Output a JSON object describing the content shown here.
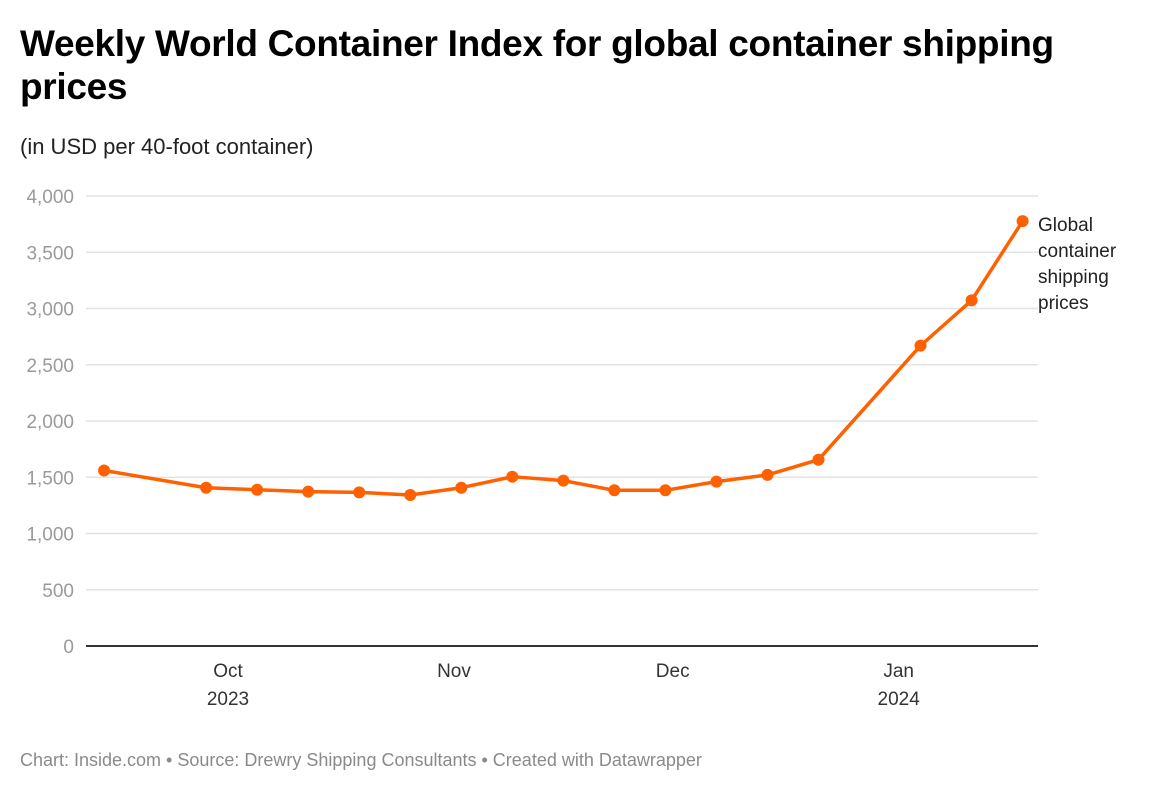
{
  "title": "Weekly World Container Index for global container shipping prices",
  "subtitle": "(in USD per 40-foot container)",
  "footer": "Chart: Inside.com • Source: Drewry Shipping Consultants • Created with Datawrapper",
  "colors": {
    "line": "#ff6000",
    "grid": "#e3e3e3",
    "axis": "#333333"
  },
  "chart_data": {
    "type": "line",
    "title": "Weekly World Container Index for global container shipping prices",
    "subtitle": "(in USD per 40-foot container)",
    "xlabel": "",
    "ylabel": "",
    "ylim": [
      0,
      4000
    ],
    "yticks": [
      0,
      500,
      1000,
      1500,
      2000,
      2500,
      3000,
      3500,
      4000
    ],
    "ytick_labels": [
      "0",
      "500",
      "1,000",
      "1,500",
      "2,000",
      "2,500",
      "3,000",
      "3,500",
      "4,000"
    ],
    "xticks": [
      {
        "date": "2023-10-01",
        "label": "Oct",
        "sublabel": "2023"
      },
      {
        "date": "2023-11-01",
        "label": "Nov",
        "sublabel": ""
      },
      {
        "date": "2023-12-01",
        "label": "Dec",
        "sublabel": ""
      },
      {
        "date": "2024-01-01",
        "label": "Jan",
        "sublabel": "2024"
      }
    ],
    "grid": true,
    "series": [
      {
        "name": "Global container shipping prices",
        "x": [
          "2023-09-14",
          "2023-09-28",
          "2023-10-05",
          "2023-10-12",
          "2023-10-19",
          "2023-10-26",
          "2023-11-02",
          "2023-11-09",
          "2023-11-16",
          "2023-11-23",
          "2023-11-30",
          "2023-12-07",
          "2023-12-14",
          "2023-12-21",
          "2024-01-04",
          "2024-01-11",
          "2024-01-18"
        ],
        "values": [
          1560,
          1407,
          1389,
          1372,
          1366,
          1342,
          1407,
          1505,
          1470,
          1384,
          1384,
          1461,
          1521,
          1656,
          2670,
          3072,
          3777
        ]
      }
    ],
    "series_label_lines": [
      "Global",
      "container",
      "shipping",
      "prices"
    ]
  }
}
